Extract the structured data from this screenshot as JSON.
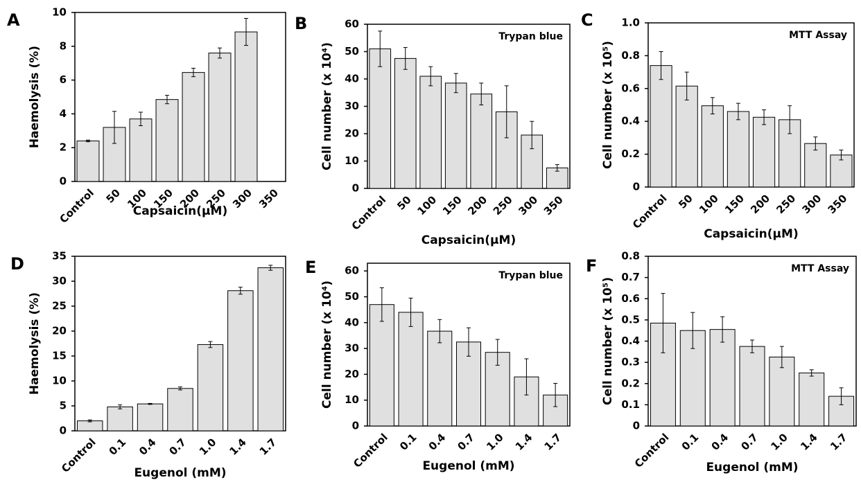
{
  "chart_data": [
    {
      "type": "bar",
      "label": "A",
      "y_label": "Haemolysis (%)",
      "x_label": "Capsaicin(μM)",
      "color": "#e0e0e0",
      "categories": [
        "Control",
        "50",
        "100",
        "150",
        "200",
        "250",
        "300",
        "350"
      ],
      "values": [
        2.4,
        3.2,
        3.7,
        4.85,
        6.45,
        7.6,
        8.85,
        null
      ],
      "errors": [
        0.05,
        0.95,
        0.4,
        0.25,
        0.25,
        0.3,
        0.8,
        null
      ],
      "ylim": [
        0,
        10
      ],
      "yticks": [
        0,
        2,
        4,
        6,
        8,
        10
      ]
    },
    {
      "type": "bar",
      "label": "B",
      "annotation": "Trypan blue",
      "y_label": "Cell number (x 10⁴)",
      "x_label": "Capsaicin(μM)",
      "color": "#e0e0e0",
      "categories": [
        "Control",
        "50",
        "100",
        "150",
        "200",
        "250",
        "300",
        "350"
      ],
      "values": [
        51,
        47.5,
        41,
        38.5,
        34.5,
        28,
        19.5,
        7.5
      ],
      "errors": [
        6.5,
        4,
        3.5,
        3.5,
        4,
        9.5,
        5,
        1.2
      ],
      "ylim": [
        0,
        60
      ],
      "yticks": [
        0,
        10,
        20,
        30,
        40,
        50,
        60
      ]
    },
    {
      "type": "bar",
      "label": "C",
      "annotation": "MTT Assay",
      "y_label": "Cell number (x 10⁵)",
      "x_label": "Capsaicin(μM)",
      "color": "#e0e0e0",
      "categories": [
        "Control",
        "50",
        "100",
        "150",
        "200",
        "250",
        "300",
        "350"
      ],
      "values": [
        0.74,
        0.615,
        0.495,
        0.46,
        0.425,
        0.41,
        0.265,
        0.195
      ],
      "errors": [
        0.085,
        0.085,
        0.05,
        0.05,
        0.045,
        0.085,
        0.04,
        0.03
      ],
      "ylim": [
        0,
        1
      ],
      "yticks": [
        0,
        0.2,
        0.4,
        0.6,
        0.8,
        {
          "value": 1,
          "label": "1.0"
        }
      ]
    },
    {
      "type": "bar",
      "label": "D",
      "y_label": "Haemolysis (%)",
      "x_label": "Eugenol (mM)",
      "color": "#e0e0e0",
      "categories": [
        "Control",
        "0.1",
        "0.4",
        "0.7",
        "1.0",
        "1.4",
        "1.7"
      ],
      "values": [
        2,
        4.8,
        5.4,
        8.5,
        17.3,
        28.1,
        32.7
      ],
      "errors": [
        0.2,
        0.4,
        0.1,
        0.3,
        0.6,
        0.7,
        0.5
      ],
      "ylim": [
        0,
        35
      ],
      "yticks": [
        0,
        5,
        10,
        15,
        20,
        25,
        30,
        35
      ]
    },
    {
      "type": "bar",
      "label": "E",
      "annotation": "Trypan blue",
      "y_label": "Cell number (x 10⁴)",
      "x_label": "Eugenol (mM)",
      "color": "#e0e0e0",
      "categories": [
        "Control",
        "0.1",
        "0.4",
        "0.7",
        "1.0",
        "1.4",
        "1.7"
      ],
      "values": [
        47,
        44,
        36.7,
        32.5,
        28.5,
        19,
        12
      ],
      "errors": [
        6.5,
        5.5,
        4.5,
        5.5,
        5,
        7,
        4.5
      ],
      "ylim": [
        0,
        63
      ],
      "yticks": [
        0,
        10,
        20,
        30,
        40,
        50,
        60
      ]
    },
    {
      "type": "bar",
      "label": "F",
      "annotation": "MTT Assay",
      "y_label": "Cell number (x 10⁵)",
      "x_label": "Eugenol (mM)",
      "color": "#e0e0e0",
      "categories": [
        "Control",
        "0.1",
        "0.4",
        "0.7",
        "1.0",
        "1.4",
        "1.7"
      ],
      "values": [
        0.485,
        0.45,
        0.455,
        0.375,
        0.325,
        0.25,
        0.14
      ],
      "errors": [
        0.14,
        0.085,
        0.06,
        0.03,
        0.05,
        0.015,
        0.04
      ],
      "ylim": [
        0,
        0.8
      ],
      "yticks": [
        0,
        0.1,
        0.2,
        0.3,
        0.4,
        0.5,
        0.6,
        0.7,
        0.8
      ]
    }
  ]
}
